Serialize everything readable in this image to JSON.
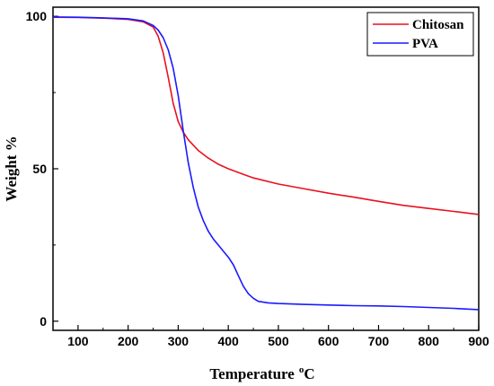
{
  "chart_data": {
    "type": "line",
    "xlabel": "Temperature",
    "xlabel_sup": "o",
    "xlabel_unit": "C",
    "ylabel": "Weight %",
    "xlim": [
      50,
      900
    ],
    "ylim": [
      -3,
      103
    ],
    "xticks": [
      100,
      200,
      300,
      400,
      500,
      600,
      700,
      800,
      900
    ],
    "yticks": [
      0,
      50,
      100
    ],
    "grid": false,
    "legend_position": "top-right",
    "series": [
      {
        "name": "Chitosan",
        "color": "#e8111f",
        "x": [
          50,
          100,
          150,
          200,
          230,
          250,
          260,
          270,
          280,
          290,
          300,
          310,
          320,
          340,
          360,
          380,
          400,
          420,
          450,
          500,
          550,
          600,
          650,
          700,
          750,
          800,
          850,
          900
        ],
        "y": [
          99.7,
          99.6,
          99.4,
          99.0,
          98.2,
          96.5,
          93.5,
          88.0,
          80.0,
          71.5,
          65.5,
          62.0,
          59.5,
          56.0,
          53.5,
          51.5,
          50.0,
          48.8,
          47.0,
          45.0,
          43.5,
          42.0,
          40.7,
          39.3,
          38.0,
          37.0,
          36.0,
          35.0
        ]
      },
      {
        "name": "PVA",
        "color": "#1a1aff",
        "x": [
          50,
          100,
          150,
          200,
          230,
          250,
          260,
          270,
          280,
          290,
          300,
          310,
          320,
          330,
          340,
          350,
          360,
          370,
          380,
          390,
          400,
          410,
          420,
          430,
          440,
          450,
          460,
          480,
          500,
          550,
          600,
          650,
          700,
          750,
          800,
          850,
          900
        ],
        "y": [
          99.8,
          99.7,
          99.5,
          99.2,
          98.5,
          97.0,
          95.5,
          93.0,
          89.0,
          83.0,
          74.0,
          62.5,
          52.0,
          44.0,
          37.5,
          33.0,
          29.5,
          27.0,
          25.0,
          23.0,
          21.0,
          18.5,
          15.0,
          11.5,
          9.0,
          7.5,
          6.5,
          6.0,
          5.8,
          5.5,
          5.3,
          5.1,
          5.0,
          4.8,
          4.5,
          4.2,
          3.8
        ]
      }
    ]
  }
}
